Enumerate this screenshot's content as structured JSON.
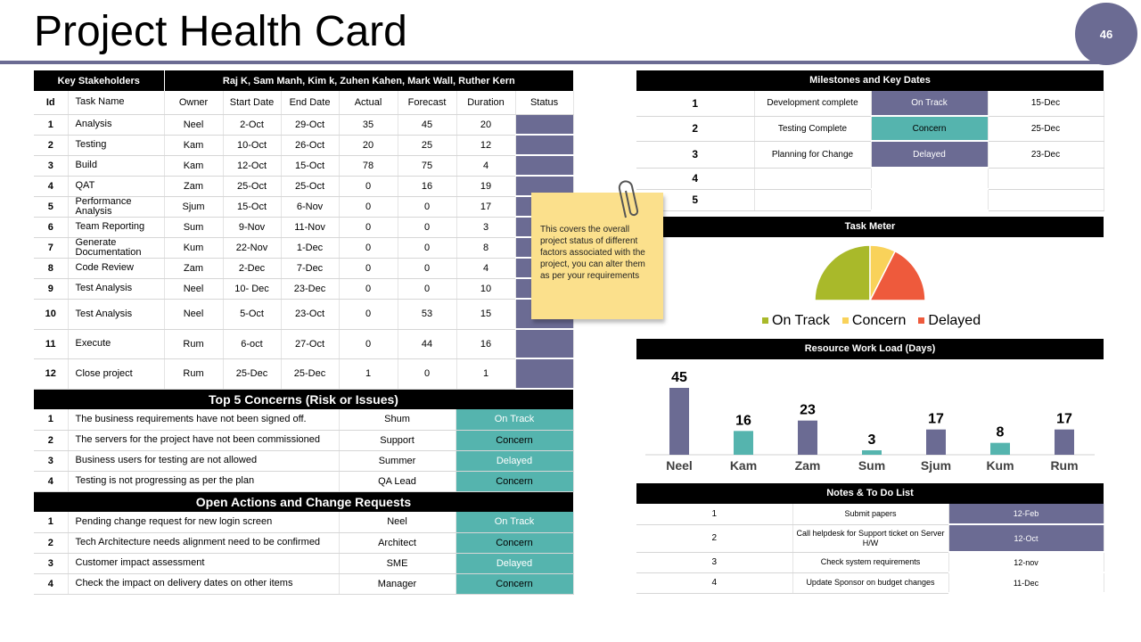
{
  "page": {
    "title": "Project Health Card",
    "page_number": "46"
  },
  "stakeholders": {
    "label": "Key Stakeholders",
    "names": "Raj K, Sam Manh, Kim k, Zuhen Kahen, Mark Wall, Ruther Kern"
  },
  "tasks": {
    "headers": [
      "Id",
      "Task Name",
      "Owner",
      "Start Date",
      "End Date",
      "Actual",
      "Forecast",
      "Duration",
      "Status"
    ],
    "rows": [
      {
        "id": "1",
        "name": "Analysis",
        "owner": "Neel",
        "start": "2-Oct",
        "end": "29-Oct",
        "actual": "35",
        "forecast": "45",
        "duration": "20"
      },
      {
        "id": "2",
        "name": "Testing",
        "owner": "Kam",
        "start": "10-Oct",
        "end": "26-Oct",
        "actual": "20",
        "forecast": "25",
        "duration": "12"
      },
      {
        "id": "3",
        "name": "Build",
        "owner": "Kam",
        "start": "12-Oct",
        "end": "15-Oct",
        "actual": "78",
        "forecast": "75",
        "duration": "4"
      },
      {
        "id": "4",
        "name": "QAT",
        "owner": "Zam",
        "start": "25-Oct",
        "end": "25-Oct",
        "actual": "0",
        "forecast": "16",
        "duration": "19"
      },
      {
        "id": "5",
        "name": "Performance Analysis",
        "owner": "Sjum",
        "start": "15-Oct",
        "end": "6-Nov",
        "actual": "0",
        "forecast": "0",
        "duration": "17"
      },
      {
        "id": "6",
        "name": "Team Reporting",
        "owner": "Sum",
        "start": "9-Nov",
        "end": "11-Nov",
        "actual": "0",
        "forecast": "0",
        "duration": "3"
      },
      {
        "id": "7",
        "name": "Generate Documentation",
        "owner": "Kum",
        "start": "22-Nov",
        "end": "1-Dec",
        "actual": "0",
        "forecast": "0",
        "duration": "8"
      },
      {
        "id": "8",
        "name": "Code Review",
        "owner": "Zam",
        "start": "2-Dec",
        "end": "7-Dec",
        "actual": "0",
        "forecast": "0",
        "duration": "4"
      },
      {
        "id": "9",
        "name": "Test Analysis",
        "owner": "Neel",
        "start": "10- Dec",
        "end": "23-Dec",
        "actual": "0",
        "forecast": "0",
        "duration": "10"
      },
      {
        "id": "10",
        "name": "Test Analysis",
        "owner": "Neel",
        "start": "5-Oct",
        "end": "23-Oct",
        "actual": "0",
        "forecast": "53",
        "duration": "15"
      },
      {
        "id": "11",
        "name": "Execute",
        "owner": "Rum",
        "start": "6-oct",
        "end": "27-Oct",
        "actual": "0",
        "forecast": "44",
        "duration": "16"
      },
      {
        "id": "12",
        "name": "Close project",
        "owner": "Rum",
        "start": "25-Dec",
        "end": "25-Dec",
        "actual": "1",
        "forecast": "0",
        "duration": "1"
      }
    ]
  },
  "concerns": {
    "title": "Top 5 Concerns (Risk or Issues)",
    "rows": [
      {
        "id": "1",
        "text": "The business requirements have not been signed off.",
        "owner": "Shum",
        "status": "On Track"
      },
      {
        "id": "2",
        "text": "The servers for the project have not been commissioned",
        "owner": "Support",
        "status": "Concern"
      },
      {
        "id": "3",
        "text": "Business users for testing are not allowed",
        "owner": "Summer",
        "status": "Delayed"
      },
      {
        "id": "4",
        "text": "Testing is not progressing as per the plan",
        "owner": "QA Lead",
        "status": "Concern"
      }
    ]
  },
  "actions": {
    "title": "Open Actions and Change Requests",
    "rows": [
      {
        "id": "1",
        "text": "Pending change request for new login screen",
        "owner": "Neel",
        "status": "On Track"
      },
      {
        "id": "2",
        "text": "Tech Architecture needs alignment need to be confirmed",
        "owner": "Architect",
        "status": "Concern"
      },
      {
        "id": "3",
        "text": "Customer impact assessment",
        "owner": "SME",
        "status": "Delayed"
      },
      {
        "id": "4",
        "text": "Check the impact on delivery dates on other items",
        "owner": "Manager",
        "status": "Concern"
      }
    ]
  },
  "milestones": {
    "title": "Milestones and Key Dates",
    "rows": [
      {
        "id": "1",
        "name": "Development complete",
        "status": "On Track",
        "date": "15-Dec"
      },
      {
        "id": "2",
        "name": "Testing Complete",
        "status": "Concern",
        "date": "25-Dec"
      },
      {
        "id": "3",
        "name": "Planning for Change",
        "status": "Delayed",
        "date": "23-Dec"
      },
      {
        "id": "4",
        "name": "",
        "status": "",
        "date": ""
      },
      {
        "id": "5",
        "name": "",
        "status": "",
        "date": ""
      }
    ]
  },
  "note": {
    "text": "This covers the overall project status of different factors associated with the project, you can alter them as per your requirements"
  },
  "colors": {
    "purple": "#6b6b93",
    "teal": "#55b4ae",
    "ontrack": "#a9b92a",
    "concern": "#f9d25a",
    "delayed": "#ee5a3c"
  },
  "task_meter": {
    "title": "Task Meter",
    "chart_data": {
      "type": "pie",
      "labels": [
        "On Track",
        "Concern",
        "Delayed"
      ],
      "values": [
        50,
        15,
        35
      ],
      "colors": [
        "#a9b92a",
        "#f9d25a",
        "#ee5a3c"
      ],
      "shape": "half-pie",
      "legend": "bottom"
    }
  },
  "workload": {
    "title": "Resource Work Load (Days)",
    "chart_data": {
      "type": "bar",
      "categories": [
        "Neel",
        "Kam",
        "Zam",
        "Sum",
        "Sjum",
        "Kum",
        "Rum"
      ],
      "values": [
        45,
        16,
        23,
        3,
        17,
        8,
        17
      ],
      "colors": [
        "#6b6b93",
        "#55b4ae",
        "#6b6b93",
        "#55b4ae",
        "#6b6b93",
        "#55b4ae",
        "#6b6b93"
      ],
      "ylim": [
        0,
        45
      ],
      "grid": false
    }
  },
  "notes": {
    "title": "Notes & To Do List",
    "rows": [
      {
        "id": "1",
        "text": "Submit papers",
        "date": "12-Feb",
        "highlight": true
      },
      {
        "id": "2",
        "text": "Call helpdesk for Support ticket on Server H/W",
        "date": "12-Oct",
        "highlight": true
      },
      {
        "id": "3",
        "text": "Check system requirements",
        "date": "12-nov",
        "highlight": false
      },
      {
        "id": "4",
        "text": "Update Sponsor on budget changes",
        "date": "11-Dec",
        "highlight": false
      }
    ]
  }
}
